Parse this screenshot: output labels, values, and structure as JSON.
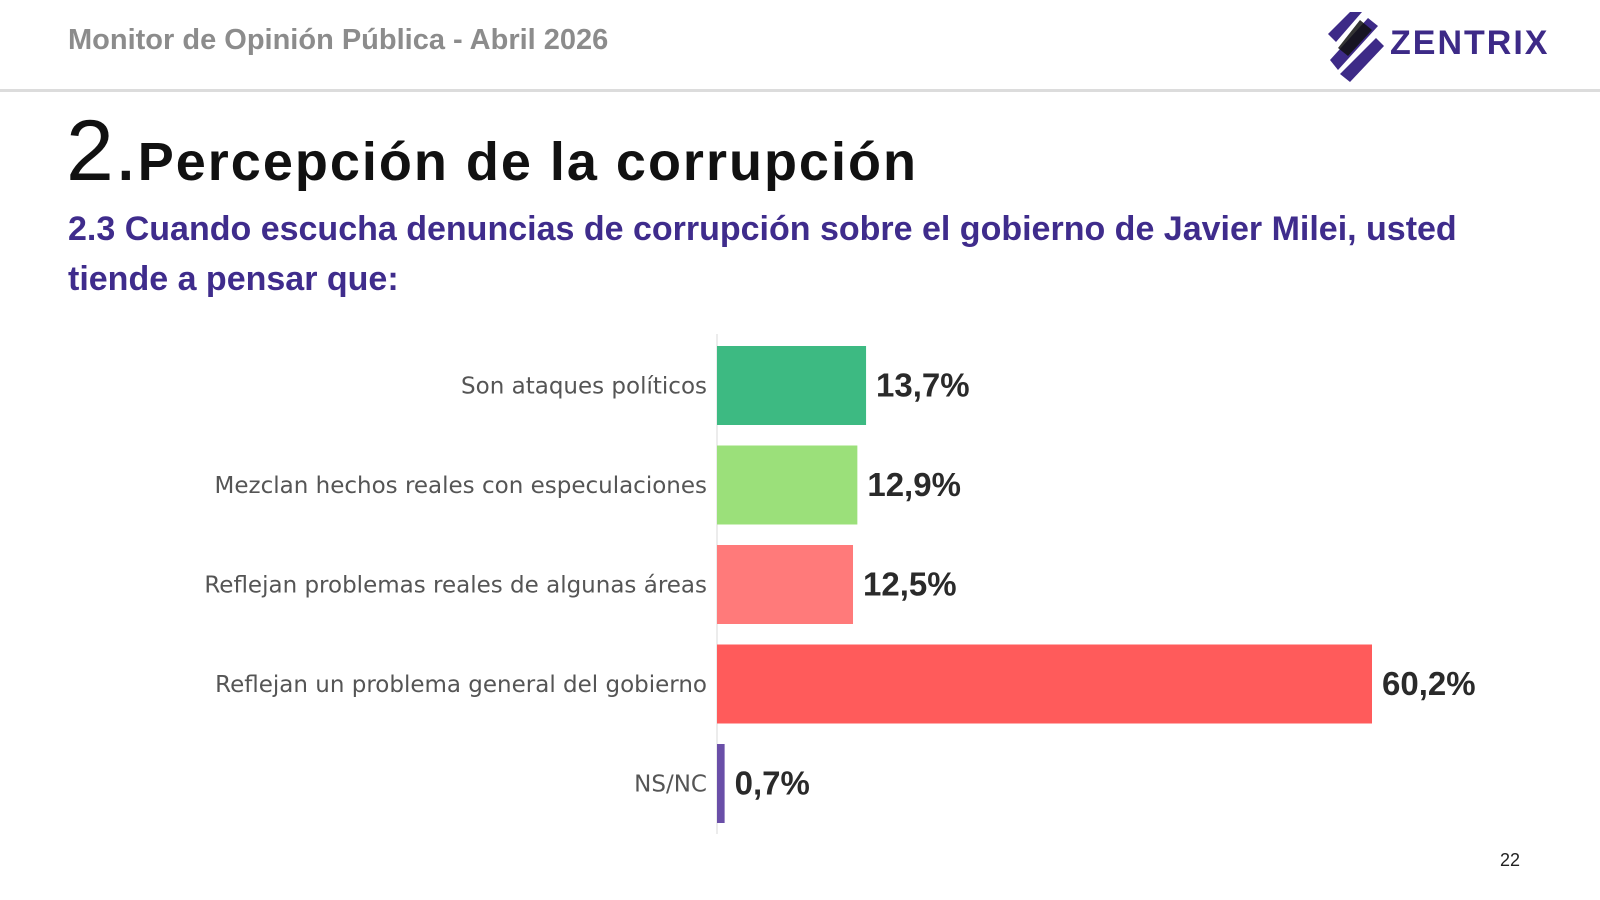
{
  "header": {
    "title": "Monitor de Opinión Pública - Abril 2026",
    "logo_text": "ZENTRIX",
    "brand_color": "#3d2a87"
  },
  "section": {
    "number": "2.",
    "title": "Percepción de la corrupción",
    "question": "2.3 Cuando escucha denuncias de corrupción sobre el gobierno de Javier Milei, usted tiende a pensar que:"
  },
  "chart_data": {
    "type": "bar",
    "orientation": "horizontal",
    "categories": [
      "Son ataques políticos",
      "Mezclan hechos reales con especulaciones",
      "Reflejan problemas reales de algunas áreas",
      "Reflejan un problema general del gobierno",
      "NS/NC"
    ],
    "values": [
      13.7,
      12.9,
      12.5,
      60.2,
      0.7
    ],
    "value_labels": [
      "13,7%",
      "12,9%",
      "12,5%",
      "60,2%",
      "0,7%"
    ],
    "colors": [
      "#3dba82",
      "#9be07a",
      "#ff7a7a",
      "#ff5b5b",
      "#6a4fa8"
    ],
    "unit": "%",
    "xlim": [
      0,
      60.2
    ],
    "grid": false,
    "legend": "none"
  },
  "footer": {
    "page_number": "22"
  }
}
